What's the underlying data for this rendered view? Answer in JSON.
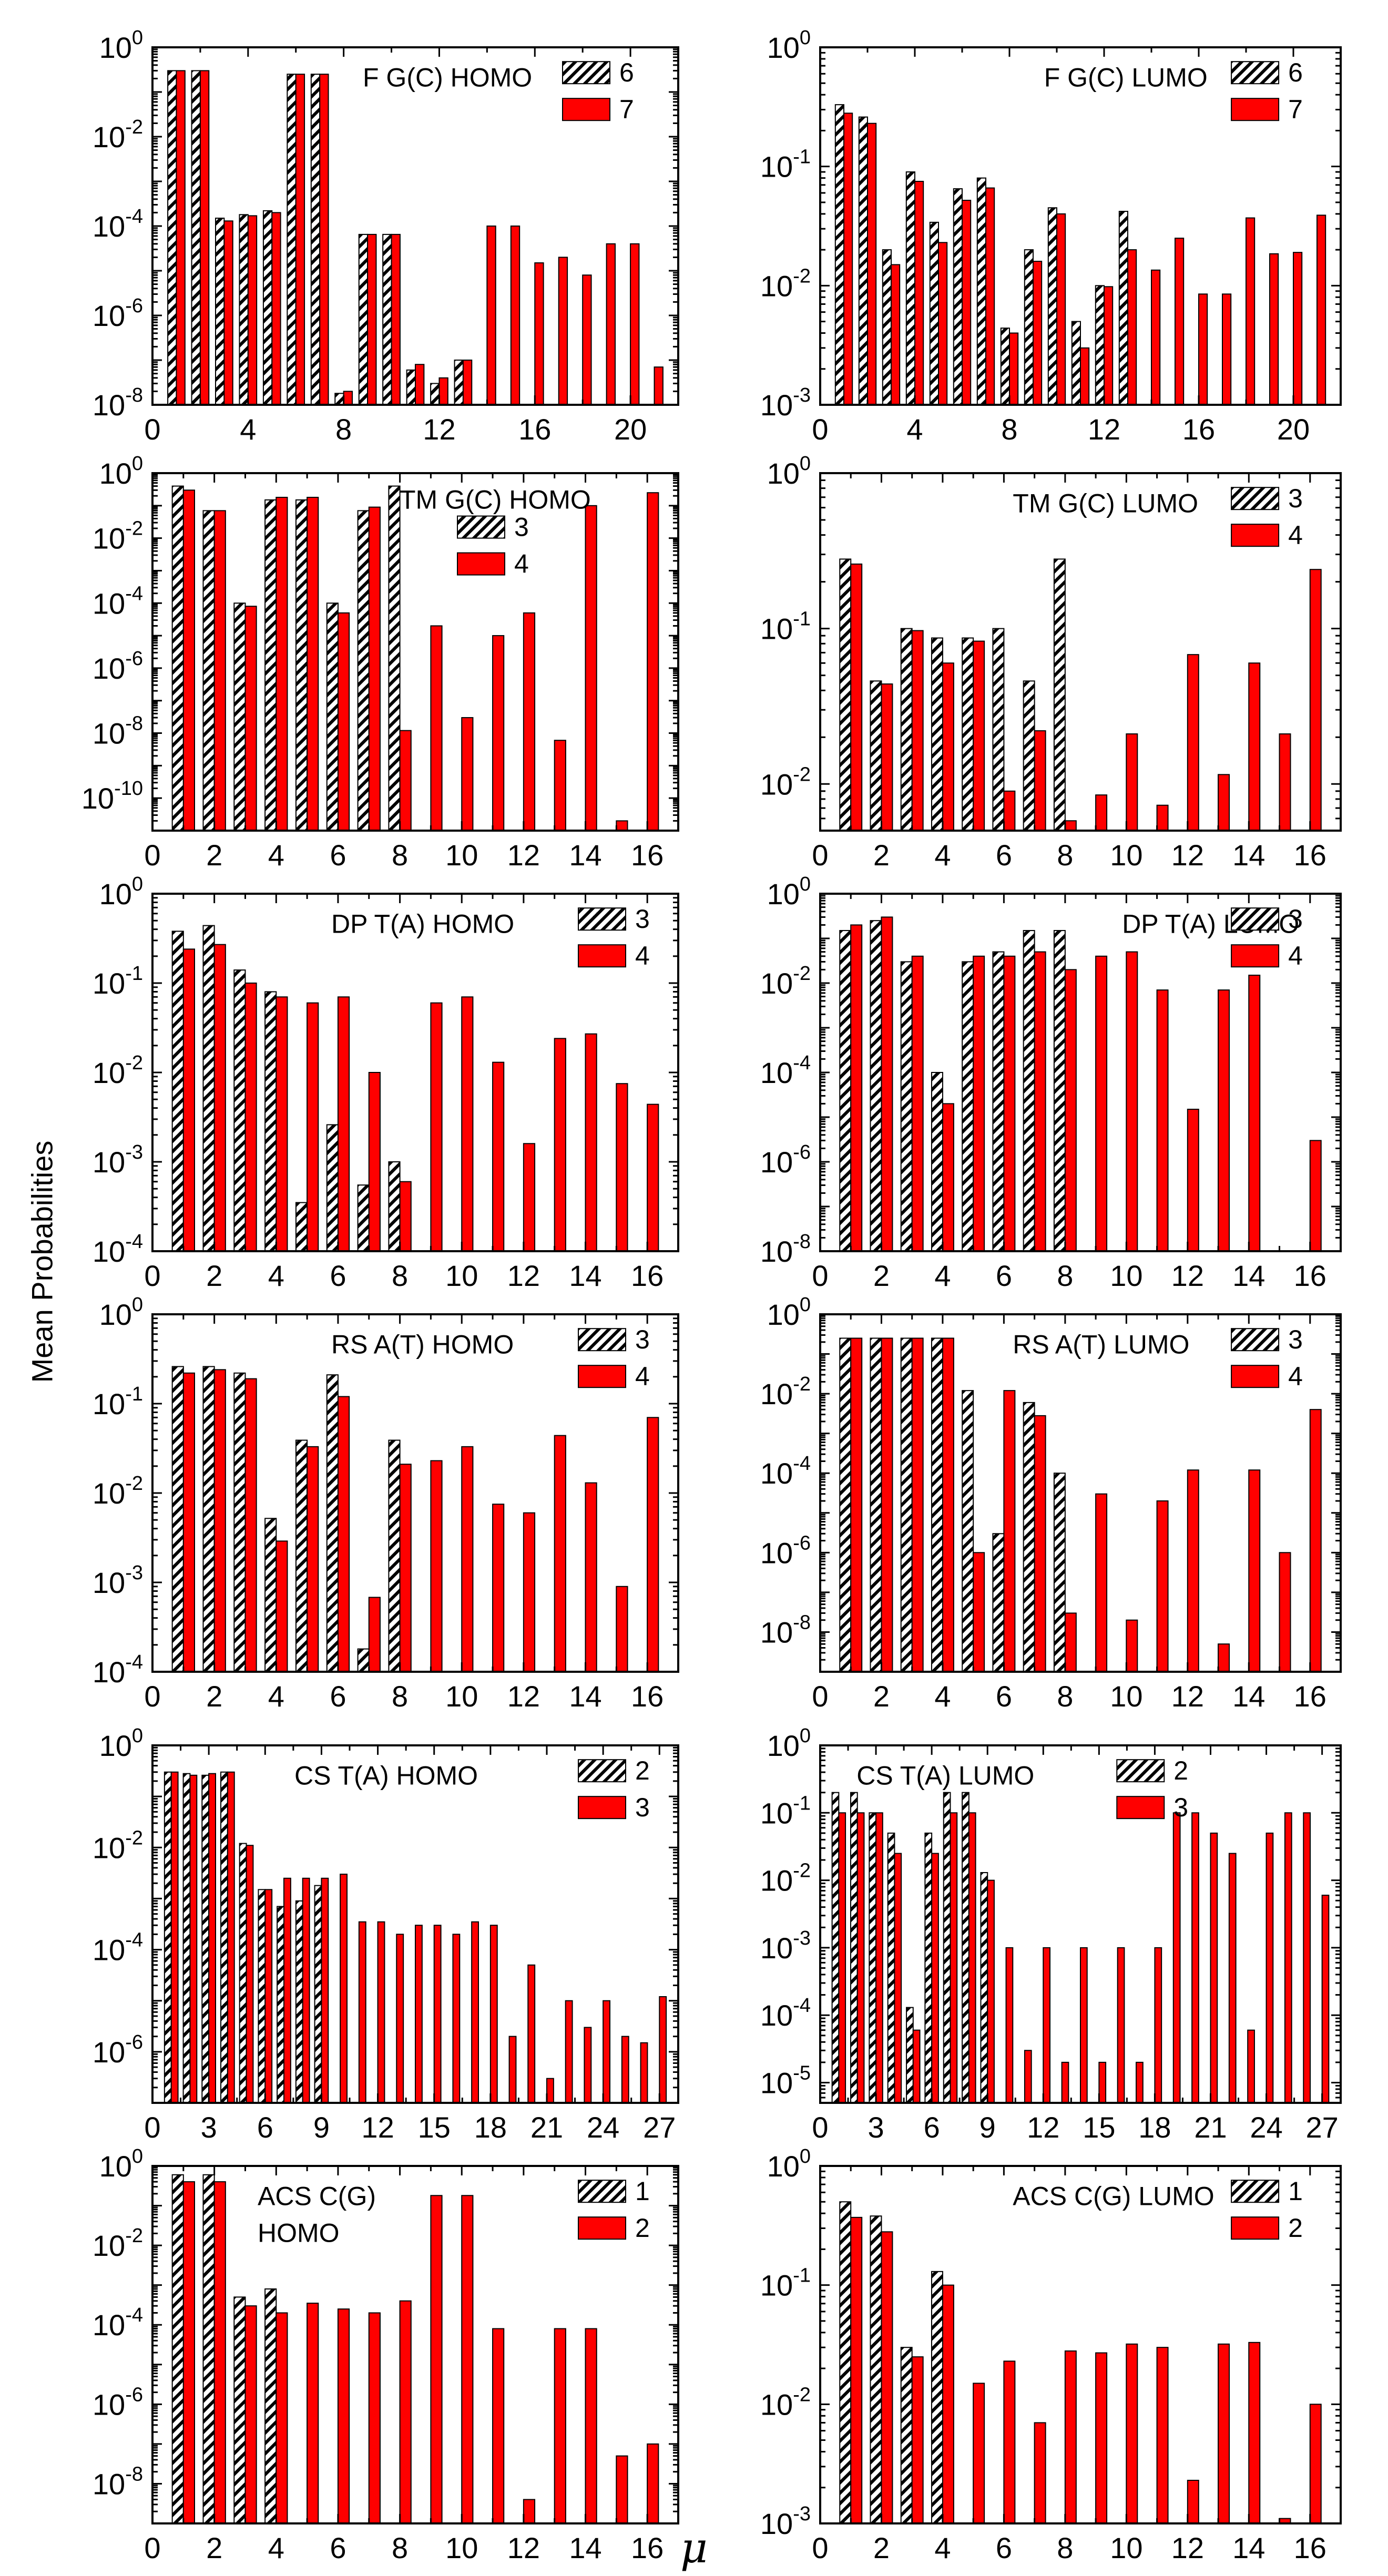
{
  "figure": {
    "ylabel": "Mean Probabilities",
    "xlabel": "μ",
    "colors": {
      "bar_b": "#ff0000",
      "bar_edge": "#000000",
      "hatch_fg": "#000000",
      "hatch_bg": "#ffffff"
    }
  },
  "chart_data": [
    {
      "type": "bar",
      "scale": "log",
      "title": "F G(C)   HOMO",
      "ylim_exp": [
        -8,
        0
      ],
      "yticks_exp": [
        -8,
        -6,
        -4,
        -2,
        0
      ],
      "xlim": [
        0,
        22
      ],
      "xticks": [
        0,
        4,
        8,
        12,
        16,
        20
      ],
      "legend": [
        "6",
        "7"
      ],
      "series": [
        {
          "name": "6",
          "x": [
            1,
            2,
            3,
            4,
            5,
            6,
            7,
            8,
            9,
            10,
            11,
            12,
            13
          ],
          "values": [
            0.3,
            0.3,
            0.00015,
            0.00018,
            0.00022,
            0.25,
            0.25,
            1.8e-08,
            6.5e-05,
            6.5e-05,
            6e-08,
            3e-08,
            1e-07
          ]
        },
        {
          "name": "7",
          "x": [
            1,
            2,
            3,
            4,
            5,
            6,
            7,
            8,
            9,
            10,
            11,
            12,
            13,
            14,
            15,
            16,
            17,
            18,
            19,
            20,
            21
          ],
          "values": [
            0.3,
            0.3,
            0.00013,
            0.00017,
            0.0002,
            0.25,
            0.25,
            2e-08,
            6.5e-05,
            6.5e-05,
            8e-08,
            4e-08,
            1e-07,
            0.0001,
            0.0001,
            1.5e-05,
            2e-05,
            8e-06,
            4e-05,
            4e-05,
            7e-08
          ]
        }
      ]
    },
    {
      "type": "bar",
      "scale": "log",
      "title": "F G(C)   LUMO",
      "ylim_exp": [
        -3,
        0
      ],
      "yticks_exp": [
        -3,
        -2,
        -1,
        0
      ],
      "xlim": [
        0,
        22
      ],
      "xticks": [
        0,
        4,
        8,
        12,
        16,
        20
      ],
      "legend": [
        "6",
        "7"
      ],
      "series": [
        {
          "name": "6",
          "x": [
            1,
            2,
            3,
            4,
            5,
            6,
            7,
            8,
            9,
            10,
            11,
            12,
            13
          ],
          "values": [
            0.33,
            0.26,
            0.02,
            0.09,
            0.034,
            0.065,
            0.08,
            0.0044,
            0.02,
            0.045,
            0.005,
            0.01,
            0.042
          ]
        },
        {
          "name": "7",
          "x": [
            1,
            2,
            3,
            4,
            5,
            6,
            7,
            8,
            9,
            10,
            11,
            12,
            13,
            14,
            15,
            16,
            17,
            18,
            19,
            20,
            21
          ],
          "values": [
            0.28,
            0.23,
            0.015,
            0.075,
            0.023,
            0.052,
            0.066,
            0.004,
            0.016,
            0.04,
            0.003,
            0.0098,
            0.02,
            0.0135,
            0.025,
            0.0085,
            0.0085,
            0.037,
            0.0185,
            0.019,
            0.039
          ]
        }
      ]
    },
    {
      "type": "bar",
      "scale": "log",
      "title": "TM G(C)   HOMO",
      "ylim_exp": [
        -11,
        0
      ],
      "yticks_exp": [
        -10,
        -8,
        -6,
        -4,
        -2,
        0
      ],
      "xlim": [
        0,
        17
      ],
      "xticks": [
        0,
        2,
        4,
        6,
        8,
        10,
        12,
        14,
        16
      ],
      "legend": [
        "3",
        "4"
      ],
      "series": [
        {
          "name": "3",
          "x": [
            1,
            2,
            3,
            4,
            5,
            6,
            7,
            8
          ],
          "values": [
            0.4,
            0.07,
            0.0001,
            0.15,
            0.15,
            0.0001,
            0.07,
            0.4
          ]
        },
        {
          "name": "4",
          "x": [
            1,
            2,
            3,
            4,
            5,
            6,
            7,
            8,
            9,
            10,
            11,
            12,
            13,
            14,
            15,
            16
          ],
          "values": [
            0.3,
            0.07,
            8e-05,
            0.18,
            0.18,
            5e-05,
            0.09,
            1.2e-08,
            2e-05,
            3e-08,
            1e-05,
            5e-05,
            6e-09,
            0.1,
            2e-11,
            0.25
          ]
        }
      ]
    },
    {
      "type": "bar",
      "scale": "log",
      "title": "TM G(C)   LUMO",
      "ylim_exp": [
        -2.3,
        0
      ],
      "yticks_exp": [
        -2,
        -1,
        0
      ],
      "xlim": [
        0,
        17
      ],
      "xticks": [
        0,
        2,
        4,
        6,
        8,
        10,
        12,
        14,
        16
      ],
      "legend": [
        "3",
        "4"
      ],
      "series": [
        {
          "name": "3",
          "x": [
            1,
            2,
            3,
            4,
            5,
            6,
            7,
            8
          ],
          "values": [
            0.28,
            0.046,
            0.1,
            0.087,
            0.087,
            0.1,
            0.046,
            0.28
          ]
        },
        {
          "name": "4",
          "x": [
            1,
            2,
            3,
            4,
            5,
            6,
            7,
            8,
            9,
            10,
            11,
            12,
            13,
            14,
            15,
            16
          ],
          "values": [
            0.26,
            0.044,
            0.097,
            0.06,
            0.083,
            0.009,
            0.022,
            0.0058,
            0.0085,
            0.021,
            0.0073,
            0.068,
            0.0115,
            0.06,
            0.021,
            0.24
          ]
        }
      ]
    },
    {
      "type": "bar",
      "scale": "log",
      "title": "DP T(A)   HOMO",
      "ylim_exp": [
        -4,
        0
      ],
      "yticks_exp": [
        -4,
        -3,
        -2,
        -1,
        0
      ],
      "xlim": [
        0,
        17
      ],
      "xticks": [
        0,
        2,
        4,
        6,
        8,
        10,
        12,
        14,
        16
      ],
      "legend": [
        "3",
        "4"
      ],
      "series": [
        {
          "name": "3",
          "x": [
            1,
            2,
            3,
            4,
            5,
            6,
            7,
            8
          ],
          "values": [
            0.38,
            0.44,
            0.14,
            0.08,
            0.00035,
            0.0026,
            0.00055,
            0.001
          ]
        },
        {
          "name": "4",
          "x": [
            1,
            2,
            3,
            4,
            5,
            6,
            7,
            8,
            9,
            10,
            11,
            12,
            13,
            14,
            15,
            16
          ],
          "values": [
            0.24,
            0.27,
            0.1,
            0.07,
            0.06,
            0.07,
            0.01,
            0.0006,
            0.06,
            0.07,
            0.013,
            0.0016,
            0.024,
            0.027,
            0.0075,
            0.0044
          ]
        }
      ]
    },
    {
      "type": "bar",
      "scale": "log",
      "title": "DP T(A)   LUMO",
      "ylim_exp": [
        -8,
        0
      ],
      "yticks_exp": [
        -8,
        -6,
        -4,
        -2,
        0
      ],
      "xlim": [
        0,
        17
      ],
      "xticks": [
        0,
        2,
        4,
        6,
        8,
        10,
        12,
        14,
        16
      ],
      "legend": [
        "3",
        "4"
      ],
      "series": [
        {
          "name": "3",
          "x": [
            1,
            2,
            3,
            4,
            5,
            6,
            7,
            8
          ],
          "values": [
            0.15,
            0.25,
            0.03,
            0.0001,
            0.03,
            0.05,
            0.15,
            0.15
          ]
        },
        {
          "name": "4",
          "x": [
            1,
            2,
            3,
            4,
            5,
            6,
            7,
            8,
            9,
            10,
            11,
            12,
            13,
            14,
            15,
            16
          ],
          "values": [
            0.2,
            0.3,
            0.04,
            2e-05,
            0.04,
            0.04,
            0.05,
            0.02,
            0.04,
            0.05,
            0.007,
            1.5e-05,
            0.007,
            0.015,
            1e-08,
            3e-06
          ]
        }
      ]
    },
    {
      "type": "bar",
      "scale": "log",
      "title": "RS A(T)   HOMO",
      "ylim_exp": [
        -4,
        0
      ],
      "yticks_exp": [
        -4,
        -3,
        -2,
        -1,
        0
      ],
      "xlim": [
        0,
        17
      ],
      "xticks": [
        0,
        2,
        4,
        6,
        8,
        10,
        12,
        14,
        16
      ],
      "legend": [
        "3",
        "4"
      ],
      "series": [
        {
          "name": "3",
          "x": [
            1,
            2,
            3,
            4,
            5,
            6,
            7,
            8
          ],
          "values": [
            0.26,
            0.26,
            0.22,
            0.0052,
            0.039,
            0.21,
            0.00018,
            0.039
          ]
        },
        {
          "name": "4",
          "x": [
            1,
            2,
            3,
            4,
            5,
            6,
            7,
            8,
            9,
            10,
            11,
            12,
            13,
            14,
            15,
            16
          ],
          "values": [
            0.22,
            0.24,
            0.19,
            0.0029,
            0.033,
            0.12,
            0.00068,
            0.021,
            0.023,
            0.033,
            0.0075,
            0.006,
            0.044,
            0.013,
            0.0009,
            0.07
          ]
        }
      ]
    },
    {
      "type": "bar",
      "scale": "log",
      "title": "RS A(T)   LUMO",
      "ylim_exp": [
        -9,
        0
      ],
      "yticks_exp": [
        -8,
        -6,
        -4,
        -2,
        0
      ],
      "xlim": [
        0,
        17
      ],
      "xticks": [
        0,
        2,
        4,
        6,
        8,
        10,
        12,
        14,
        16
      ],
      "legend": [
        "3",
        "4"
      ],
      "series": [
        {
          "name": "3",
          "x": [
            1,
            2,
            3,
            4,
            5,
            6,
            7,
            8
          ],
          "values": [
            0.25,
            0.25,
            0.25,
            0.25,
            0.012,
            3e-06,
            0.006,
            0.0001
          ]
        },
        {
          "name": "4",
          "x": [
            1,
            2,
            3,
            4,
            5,
            6,
            7,
            8,
            9,
            10,
            11,
            12,
            13,
            14,
            15,
            16
          ],
          "values": [
            0.25,
            0.25,
            0.25,
            0.25,
            1e-06,
            0.012,
            0.0028,
            3e-08,
            3e-05,
            2e-08,
            2e-05,
            0.00012,
            5e-09,
            0.00012,
            1e-06,
            0.004
          ]
        }
      ]
    },
    {
      "type": "bar",
      "scale": "log",
      "title": "CS T(A)   HOMO",
      "ylim_exp": [
        -7,
        0
      ],
      "yticks_exp": [
        -6,
        -4,
        -2,
        0
      ],
      "xlim": [
        0,
        28
      ],
      "xticks": [
        0,
        3,
        6,
        9,
        12,
        15,
        18,
        21,
        24,
        27
      ],
      "legend": [
        "2",
        "3"
      ],
      "series": [
        {
          "name": "2",
          "x": [
            1,
            2,
            3,
            4,
            5,
            6,
            7,
            8,
            9
          ],
          "values": [
            0.3,
            0.28,
            0.26,
            0.3,
            0.012,
            0.0015,
            0.0007,
            0.0009,
            0.0018
          ]
        },
        {
          "name": "3",
          "x": [
            1,
            2,
            3,
            4,
            5,
            6,
            7,
            8,
            9,
            10,
            11,
            12,
            13,
            14,
            15,
            16,
            17,
            18,
            19,
            20,
            21,
            22,
            23,
            24,
            25,
            26,
            27
          ],
          "values": [
            0.3,
            0.26,
            0.28,
            0.3,
            0.011,
            0.0015,
            0.0025,
            0.0025,
            0.0025,
            0.003,
            0.00035,
            0.00035,
            0.0002,
            0.0003,
            0.0003,
            0.0002,
            0.00035,
            0.0003,
            2e-06,
            5e-05,
            3e-07,
            1e-05,
            3e-06,
            1e-05,
            2e-06,
            1.5e-06,
            1.2e-05
          ]
        }
      ]
    },
    {
      "type": "bar",
      "scale": "log",
      "title": "CS T(A)   LUMO",
      "ylim_exp": [
        -5.3,
        0
      ],
      "yticks_exp": [
        -5,
        -4,
        -3,
        -2,
        -1,
        0
      ],
      "xlim": [
        0,
        28
      ],
      "xticks": [
        0,
        3,
        6,
        9,
        12,
        15,
        18,
        21,
        24,
        27
      ],
      "legend": [
        "2",
        "3"
      ],
      "series": [
        {
          "name": "2",
          "x": [
            1,
            2,
            3,
            4,
            5,
            6,
            7,
            8,
            9
          ],
          "values": [
            0.2,
            0.2,
            0.1,
            0.05,
            0.00013,
            0.05,
            0.2,
            0.2,
            0.013
          ]
        },
        {
          "name": "3",
          "x": [
            1,
            2,
            3,
            4,
            5,
            6,
            7,
            8,
            9,
            10,
            11,
            12,
            13,
            14,
            15,
            16,
            17,
            18,
            19,
            20,
            21,
            22,
            23,
            24,
            25,
            26,
            27
          ],
          "values": [
            0.1,
            0.1,
            0.1,
            0.025,
            6e-05,
            0.025,
            0.1,
            0.1,
            0.01,
            0.001,
            3e-05,
            0.001,
            2e-05,
            0.001,
            2e-05,
            0.001,
            2e-05,
            0.001,
            0.1,
            0.1,
            0.05,
            0.025,
            6e-05,
            0.05,
            0.1,
            0.1,
            0.006
          ]
        }
      ]
    },
    {
      "type": "bar",
      "scale": "log",
      "title": "ACS C(G)\nHOMO",
      "ylim_exp": [
        -9,
        0
      ],
      "yticks_exp": [
        -8,
        -6,
        -4,
        -2,
        0
      ],
      "xlim": [
        0,
        17
      ],
      "xticks": [
        0,
        2,
        4,
        6,
        8,
        10,
        12,
        14,
        16
      ],
      "legend": [
        "1",
        "2"
      ],
      "series": [
        {
          "name": "1",
          "x": [
            1,
            2,
            3,
            4
          ],
          "values": [
            0.6,
            0.6,
            0.0005,
            0.0008
          ]
        },
        {
          "name": "2",
          "x": [
            1,
            2,
            3,
            4,
            5,
            6,
            7,
            8,
            9,
            10,
            11,
            12,
            13,
            14,
            15,
            16
          ],
          "values": [
            0.4,
            0.4,
            0.0003,
            0.0002,
            0.00035,
            0.00025,
            0.0002,
            0.0004,
            0.18,
            0.18,
            8e-05,
            4e-09,
            8e-05,
            8e-05,
            5e-08,
            1e-07
          ]
        }
      ]
    },
    {
      "type": "bar",
      "scale": "log",
      "title": "ACS C(G)   LUMO",
      "ylim_exp": [
        -3,
        0
      ],
      "yticks_exp": [
        -3,
        -2,
        -1,
        0
      ],
      "xlim": [
        0,
        17
      ],
      "xticks": [
        0,
        2,
        4,
        6,
        8,
        10,
        12,
        14,
        16
      ],
      "legend": [
        "1",
        "2"
      ],
      "series": [
        {
          "name": "1",
          "x": [
            1,
            2,
            3,
            4
          ],
          "values": [
            0.5,
            0.38,
            0.03,
            0.13
          ]
        },
        {
          "name": "2",
          "x": [
            1,
            2,
            3,
            4,
            5,
            6,
            7,
            8,
            9,
            10,
            11,
            12,
            13,
            14,
            15,
            16
          ],
          "values": [
            0.37,
            0.28,
            0.025,
            0.1,
            0.015,
            0.023,
            0.007,
            0.028,
            0.027,
            0.032,
            0.03,
            0.0023,
            0.032,
            0.033,
            0.0011,
            0.01
          ]
        }
      ]
    }
  ]
}
